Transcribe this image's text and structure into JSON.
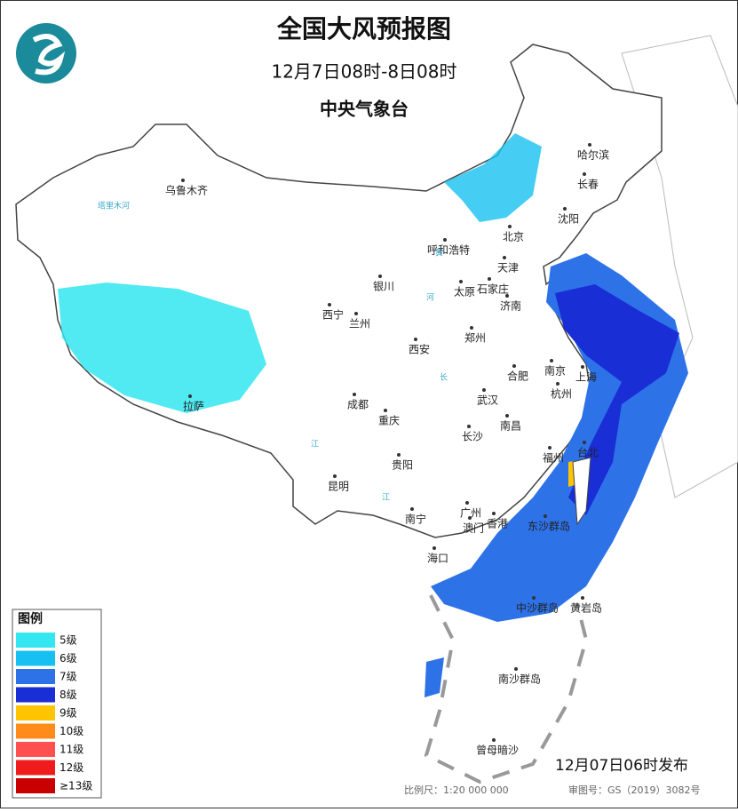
{
  "header": {
    "title": "全国大风预报图",
    "period": "12月7日08时-8日08时",
    "agency": "中央气象台"
  },
  "legend": {
    "title": "图例",
    "items": [
      {
        "label": "5级",
        "color": "#33e6f0"
      },
      {
        "label": "6级",
        "color": "#16c0f0"
      },
      {
        "label": "7级",
        "color": "#2e72e8"
      },
      {
        "label": "8级",
        "color": "#1a2ed6"
      },
      {
        "label": "9级",
        "color": "#ffc400"
      },
      {
        "label": "10级",
        "color": "#ff8c1a"
      },
      {
        "label": "11级",
        "color": "#ff5050"
      },
      {
        "label": "12级",
        "color": "#ee1c1c"
      },
      {
        "label": "≥13级",
        "color": "#c80000"
      }
    ]
  },
  "places": [
    "乌鲁木齐",
    "哈尔滨",
    "长春",
    "沈阳",
    "北京",
    "天津",
    "呼和浩特",
    "银川",
    "太原",
    "石家庄",
    "济南",
    "西宁",
    "兰州",
    "郑州",
    "西安",
    "南京",
    "合肥",
    "上海",
    "杭州",
    "成都",
    "武汉",
    "重庆",
    "拉萨",
    "长沙",
    "南昌",
    "福州",
    "台北",
    "贵阳",
    "昆明",
    "南宁",
    "广州",
    "香港",
    "澳门",
    "海口",
    "东沙群岛",
    "中沙群岛",
    "黄岩岛",
    "南沙群岛",
    "曾母暗沙"
  ],
  "rivers": [
    "塔里木河",
    "黄",
    "河",
    "长",
    "江",
    "江"
  ],
  "footer": {
    "issued": "12月07日06时发布",
    "scale": "比例尺：1:20 000 000",
    "review": "审图号：GS（2019）3082号"
  }
}
